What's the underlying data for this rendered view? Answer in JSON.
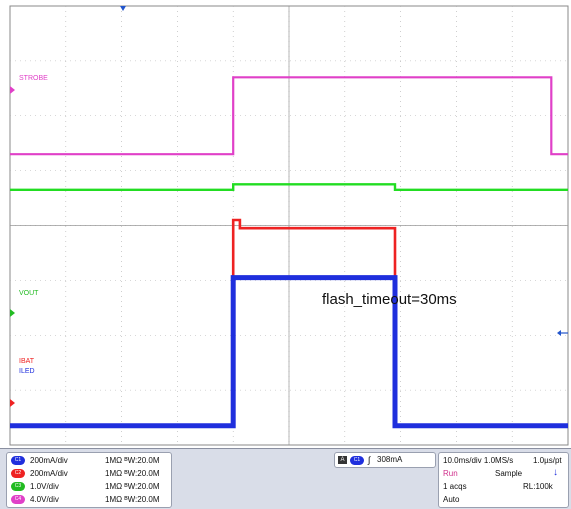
{
  "colors": {
    "strobe": "#e040c8",
    "vout": "#22dd22",
    "ibat": "#ee2222",
    "iled": "#1f2fdd",
    "grid": "#b0b0b0"
  },
  "chart_data": {
    "type": "line",
    "x_unit": "ms",
    "xlim": [
      0,
      50
    ],
    "divisions": {
      "horizontal": 10,
      "vertical": 8
    },
    "series": [
      {
        "name": "STROBE",
        "label_color": "#e040c8",
        "x": [
          0,
          20,
          20,
          48.5,
          48.5,
          50
        ],
        "y": [
          5.3,
          5.3,
          6.7,
          6.7,
          5.3,
          5.3
        ]
      },
      {
        "name": "",
        "label_color": "#22dd22",
        "x": [
          0,
          20,
          20,
          34.5,
          34.5,
          50
        ],
        "y": [
          4.65,
          4.65,
          4.75,
          4.75,
          4.65,
          4.65
        ]
      },
      {
        "name": "",
        "label_color": "#ee2222",
        "x": [
          0,
          20,
          20,
          20.6,
          20.6,
          34.5,
          34.5,
          50
        ],
        "y": [
          0.35,
          0.35,
          4.1,
          4.1,
          3.95,
          3.95,
          0.35,
          0.35
        ]
      },
      {
        "name": "",
        "label_color": "#1f2fdd",
        "x": [
          0,
          20,
          20,
          34.5,
          34.5,
          50
        ],
        "y": [
          0.35,
          0.35,
          3.05,
          3.05,
          0.35,
          0.35
        ]
      }
    ],
    "channel_labels": [
      "STROBE",
      "VOUT",
      "IBAT",
      "ILED"
    ],
    "annotation": "flash_timeout=30ms",
    "grid": true
  },
  "channels": [
    {
      "id": "C1",
      "scale": "200mA/div",
      "coupling": "1MΩ ᴮW:20.0M",
      "color": "#1f2fdd"
    },
    {
      "id": "C2",
      "scale": "200mA/div",
      "coupling": "1MΩ ᴮW:20.0M",
      "color": "#ee2222"
    },
    {
      "id": "C3",
      "scale": "1.0V/div",
      "coupling": "1MΩ ᴮW:20.0M",
      "color": "#22bb22"
    },
    {
      "id": "C4",
      "scale": "4.0V/div",
      "coupling": "1MΩ ᴮW:20.0M",
      "color": "#e040c8"
    }
  ],
  "trigger": {
    "source": "C1",
    "level": "308mA"
  },
  "horizontal": {
    "timebase": "10.0ms/div 1.0MS/s",
    "resolution": "1.0µs/pt",
    "state": "Run",
    "mode": "Sample",
    "acqs": "1 acqs",
    "record": "RL:100k",
    "trigger_mode": "Auto"
  }
}
